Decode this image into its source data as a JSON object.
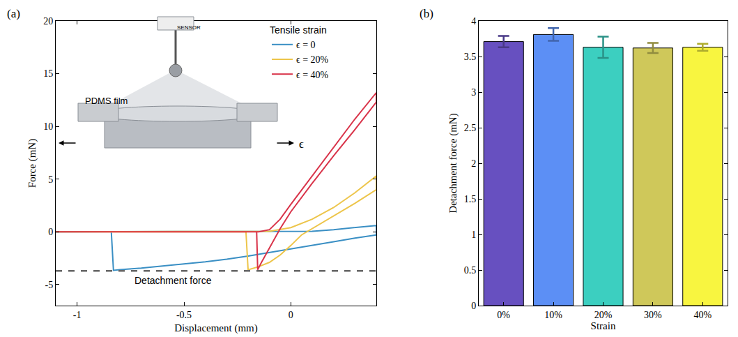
{
  "chart_data": [
    {
      "panel": "(a)",
      "type": "line",
      "x_label": "Displacement (mm)",
      "y_label": "Force (mN)",
      "xlim": [
        -1.1,
        0.4
      ],
      "xticks": [
        -1,
        -0.5,
        0
      ],
      "ylim": [
        -7,
        20
      ],
      "yticks": [
        -5,
        0,
        5,
        10,
        15,
        20
      ],
      "grid": false,
      "legend": "upper right",
      "legend_title": "Tensile strain",
      "series": [
        {
          "name": "ϵ = 0",
          "color": "#3a8fc4",
          "x": [
            -1.1,
            -0.8,
            -0.5,
            -0.2,
            0,
            0.1,
            0.2,
            0.3,
            0.4,
            0.4,
            0.3,
            0.2,
            0.1,
            0,
            -0.1,
            -0.2,
            -0.3,
            -0.4,
            -0.5,
            -0.6,
            -0.7,
            -0.8,
            -0.83,
            -0.84,
            -0.95,
            -1.1
          ],
          "values": [
            0,
            0,
            0,
            0,
            0,
            0.05,
            0.2,
            0.4,
            0.6,
            -0.3,
            -0.6,
            -0.95,
            -1.3,
            -1.65,
            -2.0,
            -2.3,
            -2.6,
            -2.85,
            -3.05,
            -3.25,
            -3.45,
            -3.6,
            -3.65,
            0,
            0,
            0
          ]
        },
        {
          "name": "ϵ = 20%",
          "color": "#edc54a",
          "x": [
            -1.1,
            -0.5,
            -0.2,
            -0.1,
            0,
            0.1,
            0.2,
            0.3,
            0.4,
            0.4,
            0.3,
            0.2,
            0.1,
            0.05,
            0,
            -0.05,
            -0.1,
            -0.15,
            -0.2,
            -0.21,
            -0.5,
            -1.1
          ],
          "values": [
            0,
            0,
            0,
            0.05,
            0.4,
            1.2,
            2.3,
            3.7,
            5.3,
            4.0,
            2.7,
            1.5,
            0.3,
            -0.3,
            -1.3,
            -2.2,
            -2.9,
            -3.3,
            -3.6,
            0,
            0,
            0
          ]
        },
        {
          "name": "ϵ = 40%",
          "color": "#d9344a",
          "x": [
            -1.1,
            -0.5,
            -0.15,
            -0.1,
            -0.05,
            0,
            0.1,
            0.2,
            0.3,
            0.4,
            0.4,
            0.3,
            0.2,
            0.1,
            0,
            -0.05,
            -0.1,
            -0.14,
            -0.155,
            -0.16,
            -0.5,
            -1.1
          ],
          "values": [
            0,
            0,
            0,
            0.2,
            1.2,
            2.6,
            5.3,
            8.0,
            10.7,
            13.2,
            12.3,
            9.7,
            7.2,
            4.6,
            1.9,
            0.3,
            -1.5,
            -3.0,
            -3.6,
            0,
            0,
            0
          ]
        }
      ],
      "reference_line": {
        "value": -3.7,
        "label": "Detachment force",
        "line_style": "dashed"
      },
      "inset_labels": {
        "sensor": "SENSOR",
        "film": "PDMS film",
        "strain": "ϵ"
      }
    },
    {
      "panel": "(b)",
      "type": "bar",
      "x_label": "Strain",
      "y_label": "Detachment force (mN)",
      "categories": [
        "0%",
        "10%",
        "20%",
        "30%",
        "40%"
      ],
      "values": [
        3.71,
        3.81,
        3.63,
        3.62,
        3.63
      ],
      "errors": [
        0.08,
        0.09,
        0.15,
        0.07,
        0.05
      ],
      "colors": [
        "#6750c0",
        "#5c8ff5",
        "#3ccfc0",
        "#cfc85a",
        "#f8f540"
      ],
      "ylim": [
        0,
        4
      ],
      "yticks": [
        0,
        0.5,
        1,
        1.5,
        2,
        2.5,
        3,
        3.5,
        4
      ],
      "grid": false
    }
  ]
}
